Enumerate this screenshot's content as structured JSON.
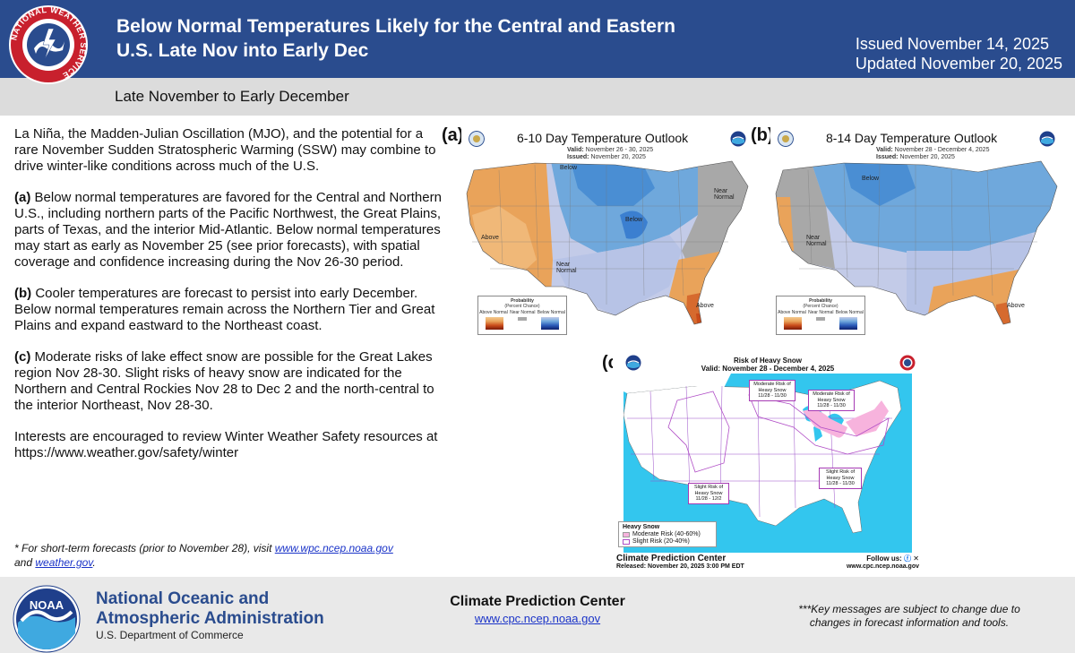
{
  "header": {
    "title_line1": "Below Normal Temperatures Likely for the Central and Eastern",
    "title_line2": "U.S. Late Nov into Early Dec",
    "issued": "Issued November 14, 2025",
    "updated": "Updated November 20, 2025",
    "logo_text": "NATIONAL WEATHER SERVICE"
  },
  "subtitle": "Late November to Early December",
  "body": {
    "intro": "La Niña, the Madden-Julian Oscillation (MJO), and the potential for a rare November Sudden Stratospheric Warming (SSW) may combine to drive winter-like conditions across much of the U.S.",
    "a_label": "(a)",
    "a_text": " Below normal temperatures are favored for the Central and Northern U.S., including northern parts of the Pacific Northwest, the Great Plains, parts of Texas, and the interior Mid-Atlantic. Below normal temperatures may start as early as November 25 (see prior forecasts), with spatial coverage and confidence increasing during the Nov 26-30 period.",
    "b_label": "(b)",
    "b_text": " Cooler temperatures are forecast to persist into early December. Below normal temperatures remain across the Northern Tier and Great Plains and expand eastward to the Northeast coast.",
    "c_label": "(c)",
    "c_text": " Moderate risks of lake effect snow are possible for the Great Lakes region Nov 28-30. Slight risks of heavy snow are indicated for the Northern and Central Rockies Nov 28 to Dec 2 and the north-central to the interior Northeast, Nov 28-30.",
    "closing": "Interests are encouraged to review Winter Weather Safety resources at https://www.weather.gov/safety/winter"
  },
  "footnote": {
    "prefix": "* For short-term forecasts (prior to November 28), visit ",
    "link1": "www.wpc.ncep.noaa.gov",
    "middle": "and ",
    "link2": "weather.gov",
    "suffix": "."
  },
  "map_a": {
    "label": "(a)",
    "title": "6-10 Day Temperature Outlook",
    "valid_label": "Valid:",
    "valid": "November 26 - 30, 2025",
    "issued_label": "Issued:",
    "issued": "November 20, 2025",
    "labels": [
      "Below",
      "Below",
      "Above",
      "Near Normal",
      "Near Normal",
      "Above"
    ]
  },
  "map_b": {
    "label": "(b)",
    "title": "8-14 Day Temperature Outlook",
    "valid_label": "Valid:",
    "valid": "November 28 - December 4, 2025",
    "issued_label": "Issued:",
    "issued": "November 20, 2025",
    "labels": [
      "Below",
      "Near Normal",
      "Above"
    ]
  },
  "legend": {
    "title": "Probability",
    "subtitle": "(Percent Chance)",
    "above": "Above Normal",
    "below": "Below Normal",
    "near": "Near Normal"
  },
  "map_c": {
    "label": "(c)",
    "title": "Risk of Heavy Snow",
    "valid": "Valid: November 28 - December 4, 2025",
    "callouts": [
      {
        "line1": "Moderate Risk of",
        "line2": "Heavy Snow",
        "line3": "11/28 - 11/30"
      },
      {
        "line1": "Moderate Risk of",
        "line2": "Heavy Snow",
        "line3": "11/28 - 11/30"
      },
      {
        "line1": "Slight Risk of",
        "line2": "Heavy Snow",
        "line3": "11/28 - 11/30"
      },
      {
        "line1": "Slight Risk of",
        "line2": "Heavy Snow",
        "line3": "11/28 - 12/2"
      }
    ],
    "legend_title": "Heavy Snow",
    "legend_moderate": "Moderate Risk (40-60%)",
    "legend_slight": "Slight Risk (20-40%)",
    "org": "Climate Prediction Center",
    "follow": "Follow us:",
    "released": "Released: November 20, 2025 3:00 PM EDT",
    "url": "www.cpc.ncep.noaa.gov",
    "colors": {
      "water": "#33c6ee",
      "land": "#ffffff",
      "moderate": "#f7b3dd",
      "slight": "#b04dc6"
    }
  },
  "footer": {
    "noaa_line1": "National Oceanic and",
    "noaa_line2": "Atmospheric Administration",
    "dept": "U.S. Department of Commerce",
    "noaa_logo_text": "NOAA",
    "cpc": "Climate Prediction Center",
    "cpc_url": "www.cpc.ncep.noaa.gov",
    "key_msg_line1": "***Key messages are subject to change due to",
    "key_msg_line2": "changes in forecast information and tools."
  },
  "colors": {
    "brand": "#2a4c8e",
    "link": "#1a33c8",
    "above": "#e9a35a",
    "below": "#6fa8dc",
    "near": "#a8a8a8"
  }
}
